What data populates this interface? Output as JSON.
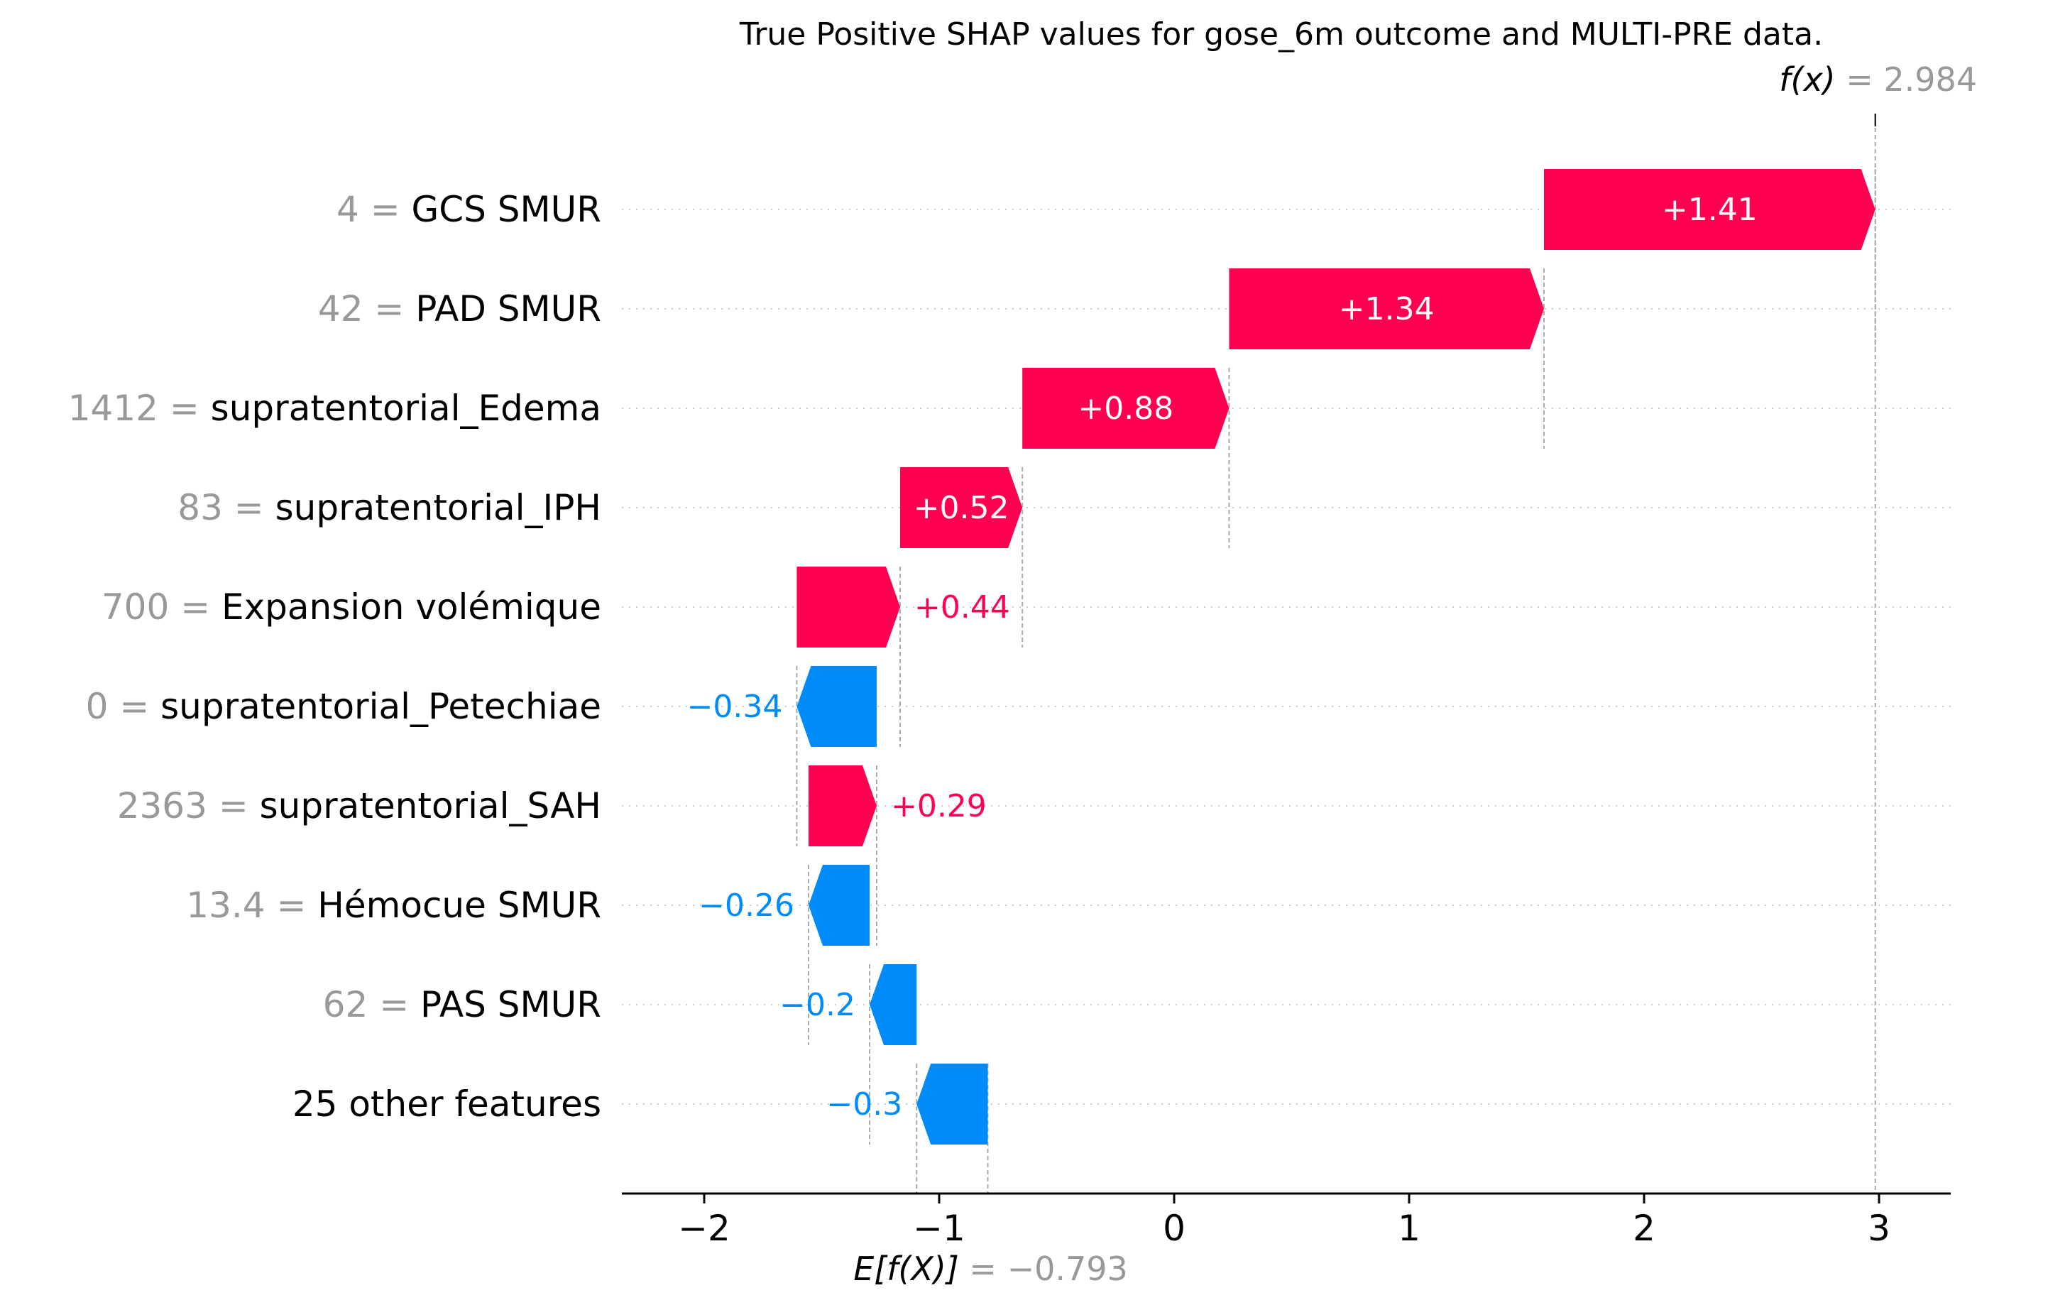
{
  "chart_data": {
    "type": "waterfall",
    "title": "True Positive SHAP values for gose_6m outcome and MULTI-PRE data.",
    "fx": {
      "label": "f(x)",
      "value": "2.984",
      "x": 2.984
    },
    "expected": {
      "label": "E[f(X)]",
      "value": "−0.793",
      "x": -0.793
    },
    "xlim": [
      -2.38,
      3.3
    ],
    "xticks": [
      {
        "value": -2,
        "label": "−2"
      },
      {
        "value": -1,
        "label": "−1"
      },
      {
        "value": 0,
        "label": "0"
      },
      {
        "value": 1,
        "label": "1"
      },
      {
        "value": 2,
        "label": "2"
      },
      {
        "value": 3,
        "label": "3"
      }
    ],
    "grid": "dotted horizontal lines per feature row",
    "colors": {
      "positive": "#ff0051",
      "negative": "#008bfb",
      "value_text": "#999999",
      "axis": "#000000"
    },
    "features": [
      {
        "value": "4",
        "name": "GCS SMUR ",
        "start": 1.574,
        "end": 2.984,
        "label": "+1.41"
      },
      {
        "value": "42",
        "name": "PAD  SMUR ",
        "start": 0.234,
        "end": 1.574,
        "label": "+1.34"
      },
      {
        "value": "1412",
        "name": "supratentorial_Edema",
        "start": -0.646,
        "end": 0.234,
        "label": "+0.88"
      },
      {
        "value": "83",
        "name": "supratentorial_IPH",
        "start": -1.166,
        "end": -0.646,
        "label": "+0.52"
      },
      {
        "value": "700",
        "name": "Expansion volémique",
        "start": -1.606,
        "end": -1.166,
        "label": "+0.44"
      },
      {
        "value": "0",
        "name": "supratentorial_Petechiae",
        "start": -1.266,
        "end": -1.606,
        "label": "−0.34"
      },
      {
        "value": "2363",
        "name": "supratentorial_SAH",
        "start": -1.556,
        "end": -1.266,
        "label": "+0.29"
      },
      {
        "value": "13.4",
        "name": "Hémocue SMUR ",
        "start": -1.296,
        "end": -1.556,
        "label": "−0.26"
      },
      {
        "value": "62",
        "name": "PAS  SMUR ",
        "start": -1.096,
        "end": -1.296,
        "label": "−0.2"
      },
      {
        "value": "",
        "name": "25 other features",
        "start": -0.793,
        "end": -1.096,
        "label": "−0.3"
      }
    ]
  }
}
